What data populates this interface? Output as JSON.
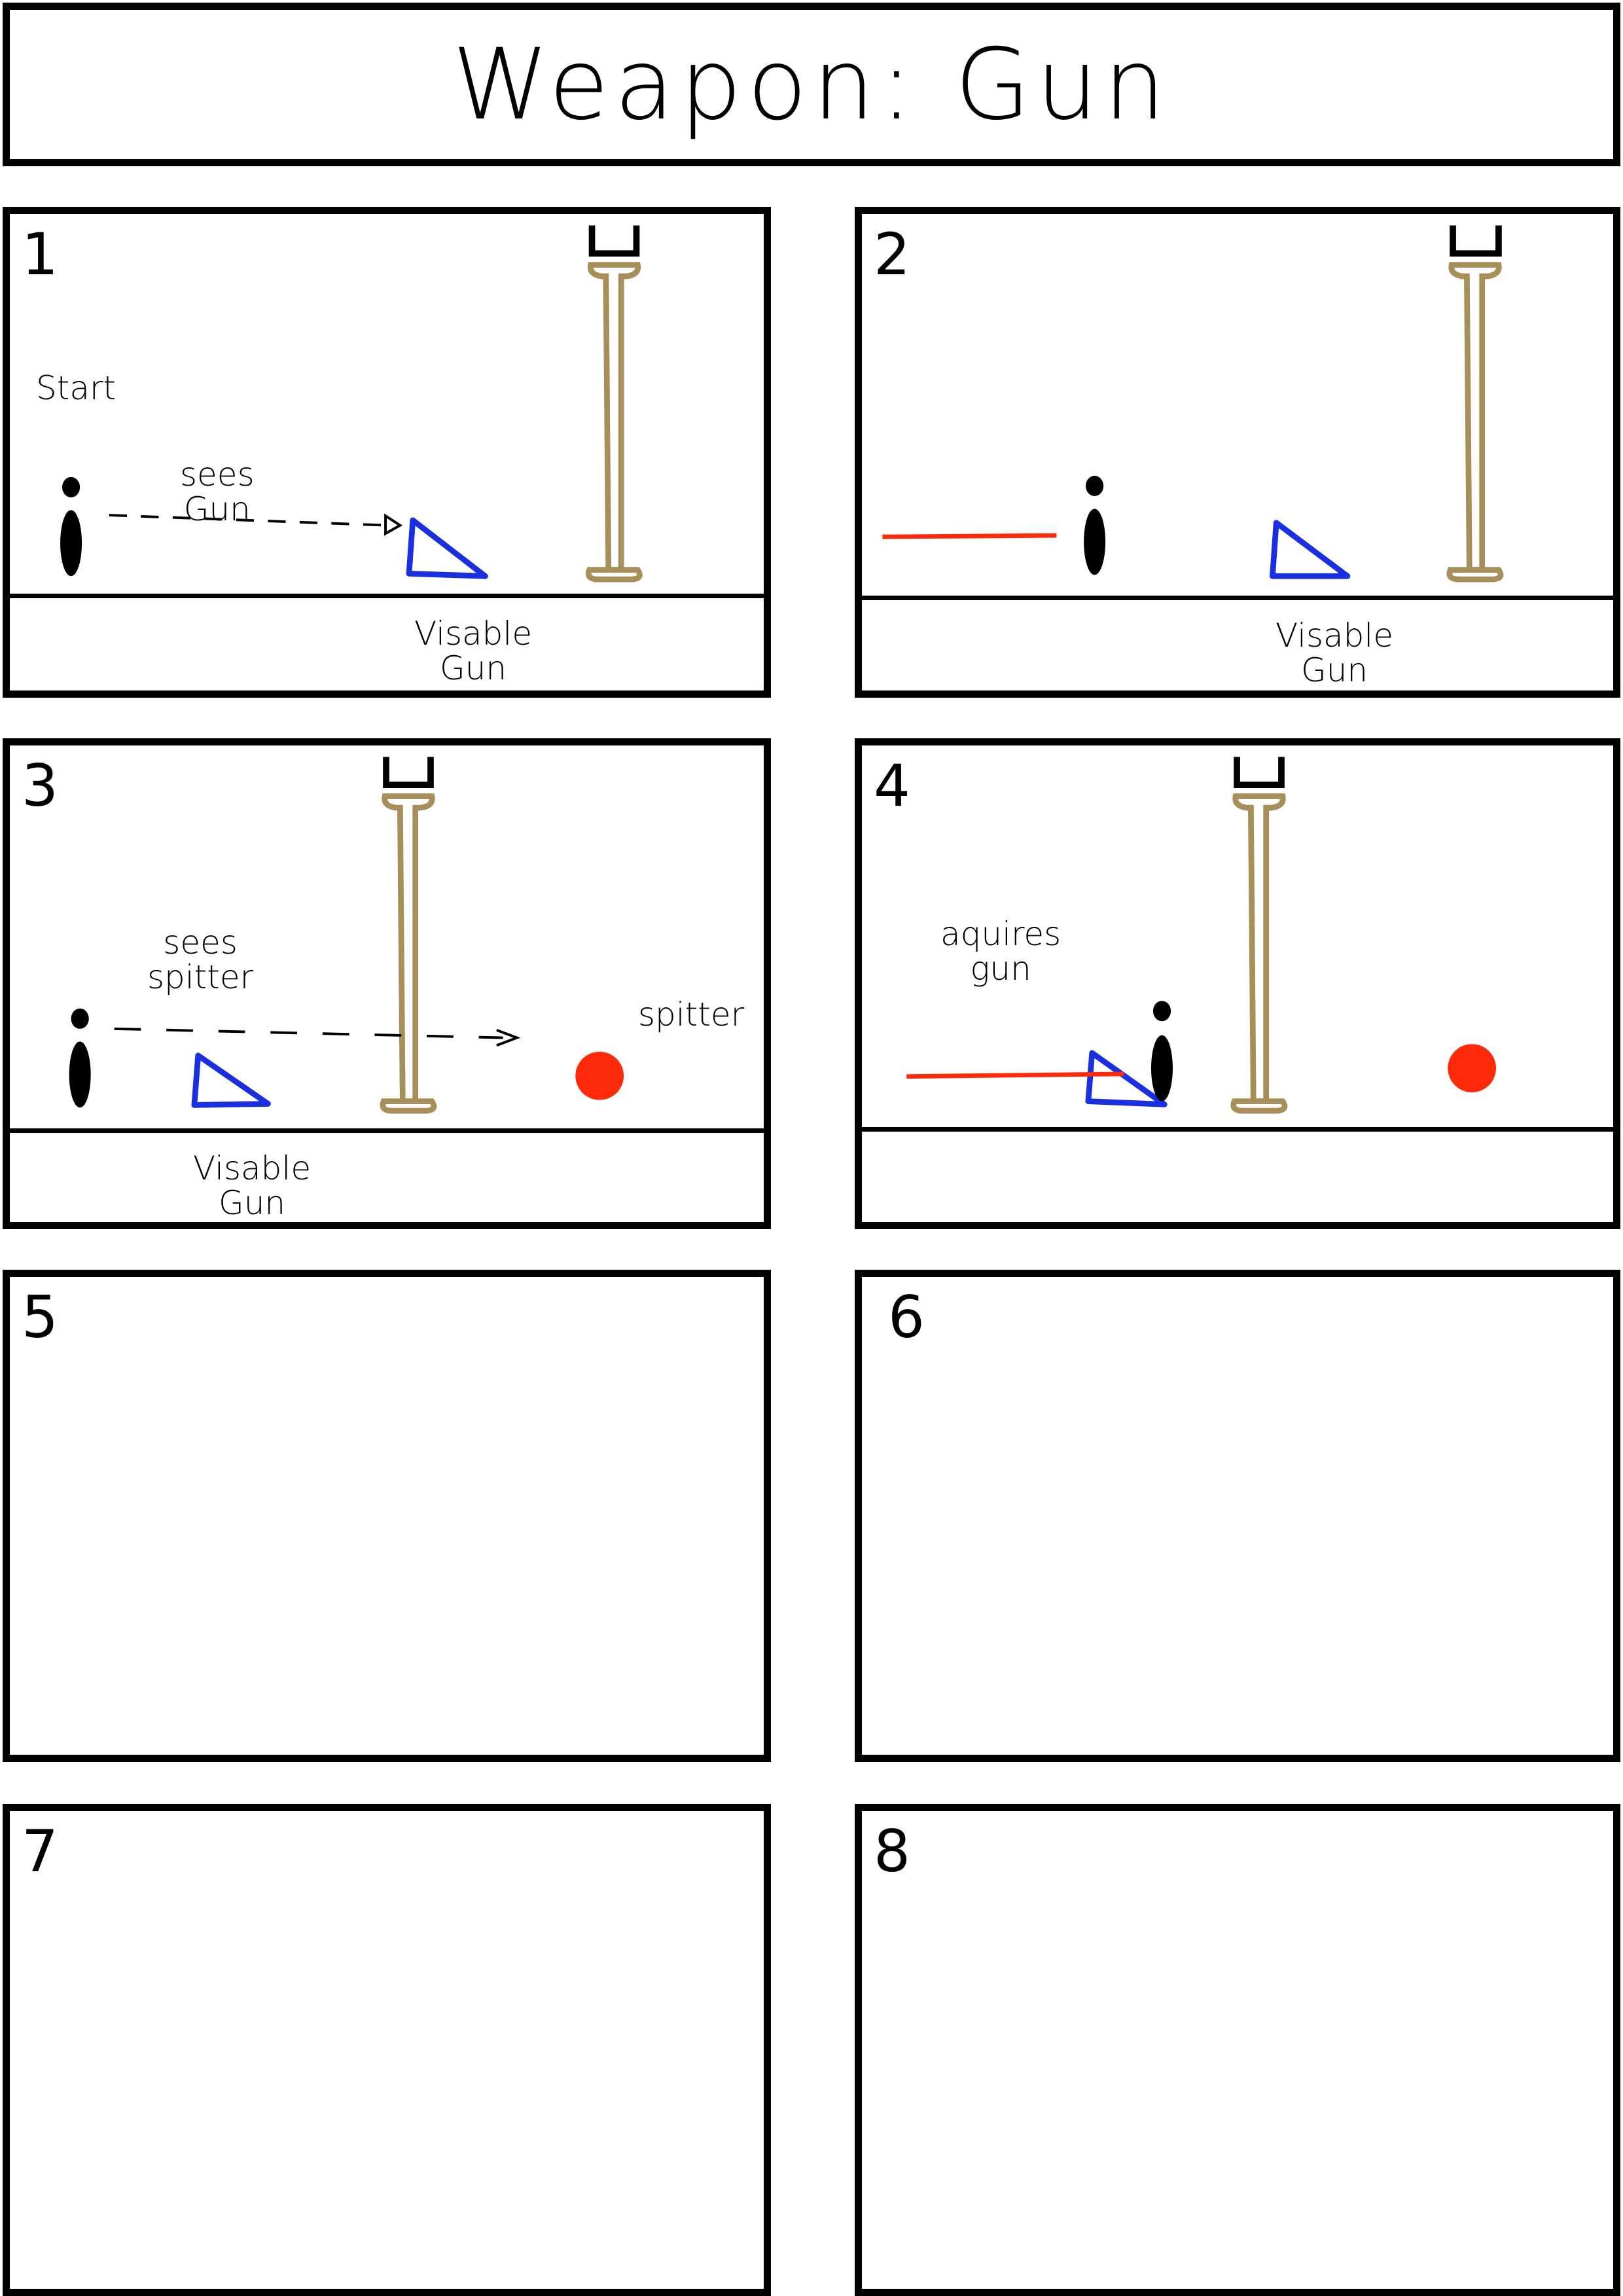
{
  "header": {
    "title": "Weapon: Gun"
  },
  "panels": [
    {
      "number": "1",
      "labels": {
        "start": "Start",
        "sees_gun": "sees\nGun",
        "visable_gun": "Visable\nGun"
      }
    },
    {
      "number": "2",
      "labels": {
        "visable_gun": "Visable\nGun"
      }
    },
    {
      "number": "3",
      "labels": {
        "sees_spitter": "sees\nspitter",
        "spitter": "spitter",
        "visable_gun": "Visable\nGun"
      }
    },
    {
      "number": "4",
      "labels": {
        "aquires_gun": "aquires\ngun"
      }
    },
    {
      "number": "5"
    },
    {
      "number": "6"
    },
    {
      "number": "7"
    },
    {
      "number": "8"
    }
  ],
  "colors": {
    "frame": "#000000",
    "gun": "#1a2fe0",
    "pillar": "#a88f5a",
    "spitter": "#ff2a0a",
    "laser": "#ff2a0a",
    "character": "#000000"
  },
  "icons": [
    "character-icon",
    "gun-triangle-icon",
    "pillar-icon",
    "spitter-icon",
    "laser-line",
    "dashed-arrow"
  ]
}
